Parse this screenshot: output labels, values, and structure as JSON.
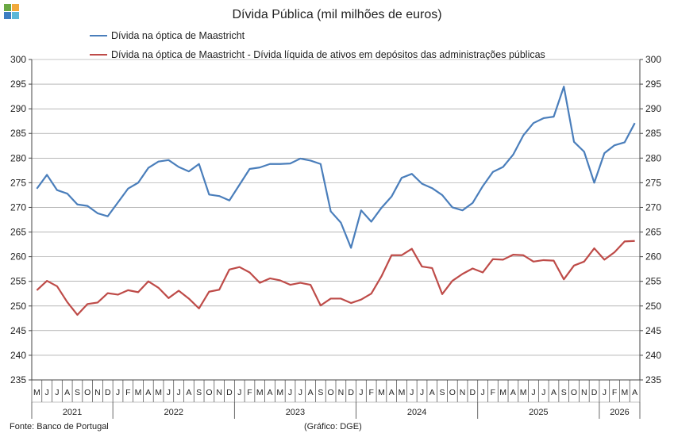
{
  "title": "Dívida Pública (mil milhões de euros)",
  "source_note": "Fonte: Banco de Portugal",
  "graph_note": "(Gráfico: DGE)",
  "logo_colors": [
    "#6aa843",
    "#f2a93b",
    "#3d7ec2",
    "#5cb8d8"
  ],
  "chart_data": {
    "type": "line",
    "title": "Dívida Pública (mil milhões de euros)",
    "ylim": [
      235,
      300
    ],
    "y_ticks": [
      235,
      240,
      245,
      250,
      255,
      260,
      265,
      270,
      275,
      280,
      285,
      290,
      295,
      300
    ],
    "x": [
      "M",
      "J",
      "J",
      "A",
      "S",
      "O",
      "N",
      "D",
      "J",
      "F",
      "M",
      "A",
      "M",
      "J",
      "J",
      "A",
      "S",
      "O",
      "N",
      "D",
      "J",
      "F",
      "M",
      "A",
      "M",
      "J",
      "J",
      "A",
      "S",
      "O",
      "N",
      "D",
      "J",
      "F",
      "M",
      "A",
      "M",
      "J",
      "J",
      "A",
      "S",
      "O",
      "N",
      "D",
      "J",
      "F",
      "M",
      "A",
      "M",
      "J",
      "J",
      "A",
      "S",
      "O",
      "N",
      "D",
      "J",
      "F",
      "M",
      "A"
    ],
    "years": [
      {
        "label": "2021",
        "start": 0,
        "count": 8
      },
      {
        "label": "2022",
        "start": 8,
        "count": 12
      },
      {
        "label": "2023",
        "start": 20,
        "count": 12
      },
      {
        "label": "2024",
        "start": 32,
        "count": 12
      },
      {
        "label": "2025",
        "start": 44,
        "count": 12
      },
      {
        "label": "2026",
        "start": 56,
        "count": 4
      }
    ],
    "grid": true,
    "series": [
      {
        "name": "Dívida na óptica de Maastricht",
        "color": "#4a7ebb",
        "values": [
          273.8,
          276.6,
          273.5,
          272.8,
          270.6,
          270.3,
          268.8,
          268.2,
          271.0,
          273.8,
          275.0,
          278.0,
          279.3,
          279.6,
          278.2,
          277.3,
          278.8,
          272.6,
          272.3,
          271.4,
          274.6,
          277.8,
          278.1,
          278.8,
          278.8,
          278.9,
          279.9,
          279.5,
          278.8,
          269.2,
          266.9,
          261.8,
          269.4,
          267.1,
          269.9,
          272.2,
          276.0,
          276.8,
          274.8,
          273.9,
          272.5,
          270.0,
          269.4,
          270.9,
          274.3,
          277.2,
          278.2,
          280.7,
          284.6,
          287.1,
          288.1,
          288.4,
          294.5,
          283.3,
          281.3,
          275.0,
          281.0,
          282.6,
          283.2,
          287.1
        ]
      },
      {
        "name": "Dívida na óptica de Maastricht - Dívida líquida de ativos em depósitos das administrações públicas",
        "color": "#be4b48",
        "values": [
          253.2,
          255.1,
          254.0,
          250.8,
          248.2,
          250.4,
          250.7,
          252.6,
          252.3,
          253.2,
          252.8,
          255.0,
          253.7,
          251.6,
          253.1,
          251.5,
          249.5,
          252.9,
          253.3,
          257.4,
          257.9,
          256.8,
          254.7,
          255.6,
          255.2,
          254.3,
          254.7,
          254.3,
          250.1,
          251.5,
          251.5,
          250.6,
          251.3,
          252.5,
          256.0,
          260.3,
          260.3,
          261.6,
          258.0,
          257.7,
          252.4,
          255.1,
          256.5,
          257.6,
          256.8,
          259.5,
          259.4,
          260.4,
          260.3,
          259.0,
          259.3,
          259.2,
          255.4,
          258.2,
          259.0,
          261.7,
          259.4,
          260.9,
          263.1,
          263.2
        ]
      }
    ]
  }
}
